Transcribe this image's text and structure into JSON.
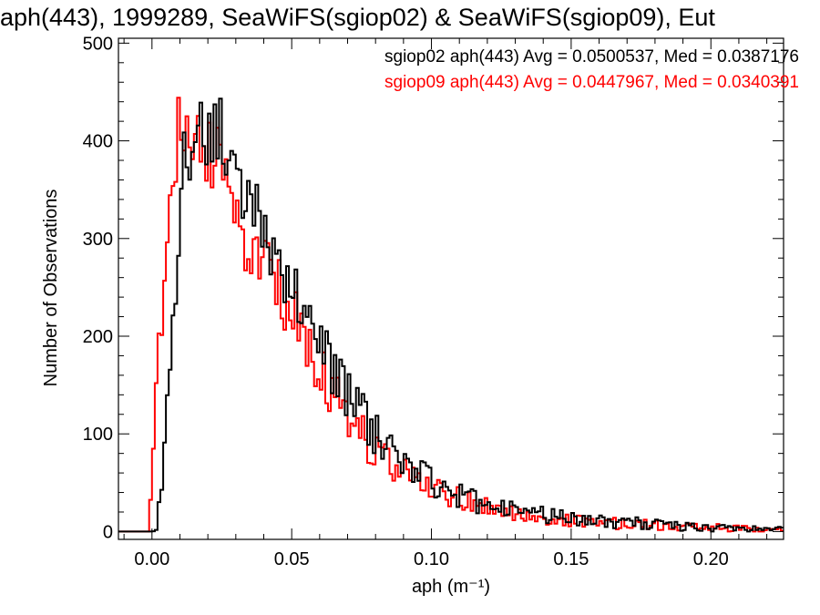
{
  "chart_data": {
    "type": "histogram",
    "title": "aph(443), 1999289, SeaWiFS(sgiop02) & SeaWiFS(sgiop09), Eut",
    "xlabel": "aph (m⁻¹)",
    "ylabel": "Number of Observations",
    "xlim": [
      -0.012,
      0.226
    ],
    "ylim": [
      -8,
      505
    ],
    "xticks": [
      0.0,
      0.05,
      0.1,
      0.15,
      0.2
    ],
    "xtick_labels": [
      "0.00",
      "0.05",
      "0.10",
      "0.15",
      "0.20"
    ],
    "yticks": [
      0,
      100,
      200,
      300,
      400,
      500
    ],
    "ytick_labels": [
      "0",
      "100",
      "200",
      "300",
      "400",
      "500"
    ],
    "bin_width": 0.001,
    "grid": false,
    "legend_position": "top-right",
    "series": [
      {
        "name": "sgiop02 aph(443) Avg = 0.0500537, Med = 0.0387176",
        "color": "#000000",
        "x": [
          0.0,
          0.002,
          0.004,
          0.006,
          0.008,
          0.01,
          0.012,
          0.014,
          0.016,
          0.018,
          0.02,
          0.022,
          0.024,
          0.026,
          0.028,
          0.03,
          0.032,
          0.034,
          0.036,
          0.038,
          0.04,
          0.042,
          0.044,
          0.046,
          0.048,
          0.05,
          0.052,
          0.054,
          0.056,
          0.058,
          0.06,
          0.062,
          0.064,
          0.066,
          0.068,
          0.07,
          0.072,
          0.074,
          0.076,
          0.078,
          0.08,
          0.085,
          0.09,
          0.095,
          0.1,
          0.105,
          0.11,
          0.115,
          0.12,
          0.125,
          0.13,
          0.14,
          0.15,
          0.16,
          0.17,
          0.18,
          0.19,
          0.2,
          0.21,
          0.22,
          0.225
        ],
        "y": [
          0,
          10,
          60,
          140,
          240,
          330,
          385,
          400,
          412,
          420,
          418,
          410,
          405,
          395,
          382,
          370,
          355,
          345,
          335,
          320,
          310,
          298,
          290,
          275,
          265,
          255,
          240,
          225,
          210,
          200,
          190,
          178,
          170,
          160,
          150,
          140,
          130,
          125,
          115,
          108,
          100,
          88,
          75,
          65,
          52,
          45,
          38,
          32,
          28,
          25,
          22,
          17,
          13,
          11,
          9,
          7,
          5,
          4,
          3,
          2,
          2
        ]
      },
      {
        "name": "sgiop09 aph(443) Avg = 0.0447967, Med = 0.0340391",
        "color": "#ff0000",
        "x": [
          -0.001,
          0.0,
          0.002,
          0.004,
          0.006,
          0.008,
          0.01,
          0.011,
          0.012,
          0.014,
          0.016,
          0.018,
          0.02,
          0.022,
          0.024,
          0.026,
          0.028,
          0.03,
          0.032,
          0.034,
          0.036,
          0.038,
          0.04,
          0.042,
          0.044,
          0.046,
          0.048,
          0.05,
          0.052,
          0.054,
          0.056,
          0.058,
          0.06,
          0.062,
          0.064,
          0.066,
          0.068,
          0.07,
          0.072,
          0.074,
          0.076,
          0.078,
          0.08,
          0.085,
          0.09,
          0.095,
          0.1,
          0.105,
          0.11,
          0.115,
          0.12,
          0.125,
          0.13,
          0.14,
          0.15,
          0.16,
          0.17,
          0.18,
          0.19,
          0.2,
          0.21,
          0.22,
          0.225
        ],
        "y": [
          0,
          80,
          185,
          250,
          298,
          360,
          440,
          450,
          415,
          398,
          405,
          410,
          400,
          385,
          375,
          360,
          335,
          320,
          310,
          300,
          290,
          280,
          272,
          262,
          255,
          245,
          235,
          225,
          212,
          198,
          185,
          175,
          165,
          155,
          145,
          135,
          125,
          118,
          110,
          102,
          95,
          88,
          82,
          72,
          63,
          55,
          46,
          40,
          35,
          30,
          26,
          23,
          20,
          15,
          12,
          10,
          8,
          6,
          5,
          4,
          3,
          2,
          2
        ]
      }
    ]
  }
}
